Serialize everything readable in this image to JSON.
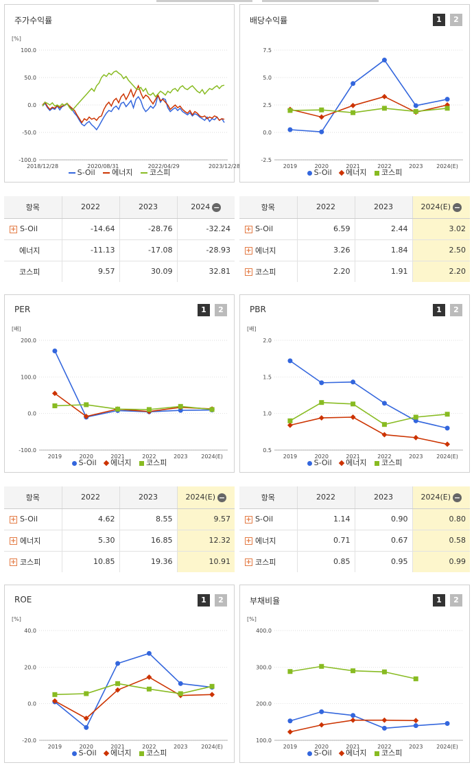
{
  "colors": {
    "soil": "#3366dd",
    "energy": "#cc3300",
    "kospi": "#88bb22"
  },
  "legend": [
    "S-Oil",
    "에너지",
    "코스피"
  ],
  "panels": {
    "ret": {
      "title": "주가수익률",
      "unit": "[%]"
    },
    "div": {
      "title": "배당수익률",
      "btn1": "1",
      "btn2": "2"
    },
    "per": {
      "title": "PER",
      "unit": "[배]",
      "btn1": "1",
      "btn2": "2"
    },
    "pbr": {
      "title": "PBR",
      "unit": "[배]",
      "btn1": "1",
      "btn2": "2"
    },
    "roe": {
      "title": "ROE",
      "unit": "[%]",
      "btn1": "1",
      "btn2": "2"
    },
    "debt": {
      "title": "부채비율",
      "unit": "[%]",
      "btn1": "1",
      "btn2": "2"
    }
  },
  "tables": {
    "ret": {
      "headers": [
        "항목",
        "2022",
        "2023",
        "2024"
      ],
      "minus": "−",
      "rows": [
        {
          "name": "S-Oil",
          "values": [
            "-14.64",
            "-28.76",
            "-32.24"
          ]
        },
        {
          "name": "에너지",
          "values": [
            "-11.13",
            "-17.08",
            "-28.93"
          ]
        },
        {
          "name": "코스피",
          "values": [
            "9.57",
            "30.09",
            "32.81"
          ]
        }
      ]
    },
    "div": {
      "headers": [
        "항목",
        "2022",
        "2023",
        "2024(E)"
      ],
      "minus": "−",
      "rows": [
        {
          "name": "S-Oil",
          "values": [
            "6.59",
            "2.44",
            "3.02"
          ]
        },
        {
          "name": "에너지",
          "values": [
            "3.26",
            "1.84",
            "2.50"
          ]
        },
        {
          "name": "코스피",
          "values": [
            "2.20",
            "1.91",
            "2.20"
          ]
        }
      ]
    },
    "per": {
      "headers": [
        "항목",
        "2022",
        "2023",
        "2024(E)"
      ],
      "minus": "−",
      "rows": [
        {
          "name": "S-Oil",
          "values": [
            "4.62",
            "8.55",
            "9.57"
          ]
        },
        {
          "name": "에너지",
          "values": [
            "5.30",
            "16.85",
            "12.32"
          ]
        },
        {
          "name": "코스피",
          "values": [
            "10.85",
            "19.36",
            "10.91"
          ]
        }
      ]
    },
    "pbr": {
      "headers": [
        "항목",
        "2022",
        "2023",
        "2024(E)"
      ],
      "minus": "−",
      "rows": [
        {
          "name": "S-Oil",
          "values": [
            "1.14",
            "0.90",
            "0.80"
          ]
        },
        {
          "name": "에너지",
          "values": [
            "0.71",
            "0.67",
            "0.58"
          ]
        },
        {
          "name": "코스피",
          "values": [
            "0.85",
            "0.95",
            "0.99"
          ]
        }
      ]
    }
  },
  "chart_data": [
    {
      "id": "ret",
      "type": "line",
      "ylabel": "[%]",
      "ylim": [
        -100,
        100
      ],
      "yticks": [
        "100.0",
        "50.0",
        "0.0",
        "-50.0",
        "-100.0"
      ],
      "xticks": [
        "2018/12/28",
        "2020/08/31",
        "2022/04/29",
        "2023/12/28"
      ],
      "series": [
        {
          "name": "S-Oil",
          "values": [
            -2,
            3,
            -5,
            -10,
            -6,
            -8,
            -2,
            -9,
            -3,
            -1,
            2,
            -4,
            -8,
            -15,
            -20,
            -28,
            -35,
            -38,
            -33,
            -30,
            -36,
            -40,
            -45,
            -38,
            -30,
            -22,
            -15,
            -10,
            -12,
            -5,
            -2,
            -8,
            3,
            5,
            -3,
            2,
            8,
            -5,
            10,
            15,
            8,
            -5,
            -12,
            -8,
            -2,
            -6,
            0,
            18,
            5,
            12,
            10,
            -5,
            -12,
            -8,
            -5,
            -10,
            -6,
            -12,
            -15,
            -18,
            -14,
            -20,
            -16,
            -18,
            -22,
            -25,
            -28,
            -22,
            -30,
            -25,
            -27,
            -22,
            -28,
            -25,
            -32
          ]
        },
        {
          "name": "에너지",
          "values": [
            0,
            5,
            -3,
            -8,
            -4,
            -6,
            -1,
            -5,
            -2,
            0,
            3,
            -2,
            -6,
            -10,
            -18,
            -25,
            -32,
            -25,
            -28,
            -22,
            -26,
            -24,
            -28,
            -22,
            -20,
            -8,
            0,
            5,
            -2,
            8,
            12,
            4,
            15,
            20,
            10,
            18,
            28,
            15,
            25,
            35,
            22,
            12,
            18,
            15,
            8,
            2,
            10,
            18,
            8,
            10,
            5,
            0,
            -8,
            -4,
            0,
            -5,
            -2,
            -8,
            -12,
            -15,
            -10,
            -18,
            -12,
            -15,
            -20,
            -22,
            -20,
            -25,
            -22,
            -24,
            -20,
            -22,
            -28,
            -25,
            -26
          ]
        },
        {
          "name": "코스피",
          "values": [
            -2,
            5,
            3,
            0,
            4,
            -2,
            0,
            -3,
            2,
            -1,
            3,
            -5,
            -10,
            -5,
            0,
            5,
            10,
            15,
            20,
            25,
            30,
            25,
            35,
            40,
            50,
            55,
            52,
            58,
            55,
            60,
            62,
            58,
            55,
            48,
            52,
            45,
            40,
            35,
            30,
            28,
            32,
            25,
            30,
            20,
            18,
            22,
            15,
            20,
            25,
            22,
            18,
            25,
            22,
            28,
            30,
            25,
            32,
            35,
            30,
            28,
            32,
            35,
            30,
            25,
            22,
            28,
            20,
            25,
            30,
            28,
            32,
            35,
            30,
            35,
            36
          ]
        }
      ]
    },
    {
      "id": "div",
      "type": "line",
      "ylim": [
        -2.5,
        7.5
      ],
      "yticks": [
        "7.5",
        "5.0",
        "2.5",
        "0.0",
        "-2.5"
      ],
      "categories": [
        "2019",
        "2020",
        "2021",
        "2022",
        "2023",
        "2024(E)"
      ],
      "series": [
        {
          "name": "S-Oil",
          "values": [
            0.25,
            0.05,
            4.45,
            6.59,
            2.44,
            3.02
          ]
        },
        {
          "name": "에너지",
          "values": [
            2.1,
            1.4,
            2.45,
            3.26,
            1.84,
            2.5
          ]
        },
        {
          "name": "코스피",
          "values": [
            2.0,
            2.05,
            1.8,
            2.2,
            1.91,
            2.2
          ]
        }
      ]
    },
    {
      "id": "per",
      "type": "line",
      "ylabel": "[배]",
      "ylim": [
        -100,
        200
      ],
      "yticks": [
        "200.0",
        "100.0",
        "0.0",
        "-100.0"
      ],
      "categories": [
        "2019",
        "2020",
        "2021",
        "2022",
        "2023",
        "2024(E)"
      ],
      "series": [
        {
          "name": "S-Oil",
          "values": [
            171,
            -10,
            8,
            4.62,
            8.55,
            9.57
          ]
        },
        {
          "name": "에너지",
          "values": [
            55,
            -8,
            12,
            5.3,
            16.85,
            12.32
          ]
        },
        {
          "name": "코스피",
          "values": [
            21,
            24,
            12,
            10.85,
            19.36,
            10.91
          ]
        }
      ]
    },
    {
      "id": "pbr",
      "type": "line",
      "ylabel": "[배]",
      "ylim": [
        0.5,
        2.0
      ],
      "yticks": [
        "2.0",
        "1.5",
        "1.0",
        "0.5"
      ],
      "categories": [
        "2019",
        "2020",
        "2021",
        "2022",
        "2023",
        "2024(E)"
      ],
      "series": [
        {
          "name": "S-Oil",
          "values": [
            1.72,
            1.42,
            1.43,
            1.14,
            0.9,
            0.8
          ]
        },
        {
          "name": "에너지",
          "values": [
            0.84,
            0.94,
            0.95,
            0.71,
            0.67,
            0.58
          ]
        },
        {
          "name": "코스피",
          "values": [
            0.9,
            1.15,
            1.13,
            0.85,
            0.95,
            0.99
          ]
        }
      ]
    },
    {
      "id": "roe",
      "type": "line",
      "ylabel": "[%]",
      "ylim": [
        -20,
        40
      ],
      "yticks": [
        "40.0",
        "20.0",
        "0.0",
        "-20.0"
      ],
      "categories": [
        "2019",
        "2020",
        "2021",
        "2022",
        "2023",
        "2024(E)"
      ],
      "series": [
        {
          "name": "S-Oil",
          "values": [
            1.0,
            -13.0,
            22.0,
            27.5,
            11.0,
            9.0
          ]
        },
        {
          "name": "에너지",
          "values": [
            1.5,
            -8.0,
            7.5,
            14.5,
            4.5,
            5.0
          ]
        },
        {
          "name": "코스피",
          "values": [
            5.0,
            5.5,
            11.0,
            8.0,
            5.5,
            9.5
          ]
        }
      ]
    },
    {
      "id": "debt",
      "type": "line",
      "ylabel": "[%]",
      "ylim": [
        100,
        400
      ],
      "yticks": [
        "400.0",
        "300.0",
        "200.0",
        "100.0"
      ],
      "categories": [
        "2019",
        "2020",
        "2021",
        "2022",
        "2023",
        "2024(E)"
      ],
      "series": [
        {
          "name": "S-Oil",
          "values": [
            153,
            178,
            168,
            133,
            140,
            146
          ]
        },
        {
          "name": "에너지",
          "values": [
            123,
            142,
            155,
            155,
            154,
            null
          ]
        },
        {
          "name": "코스피",
          "values": [
            288,
            302,
            290,
            287,
            268,
            null
          ]
        }
      ]
    }
  ]
}
